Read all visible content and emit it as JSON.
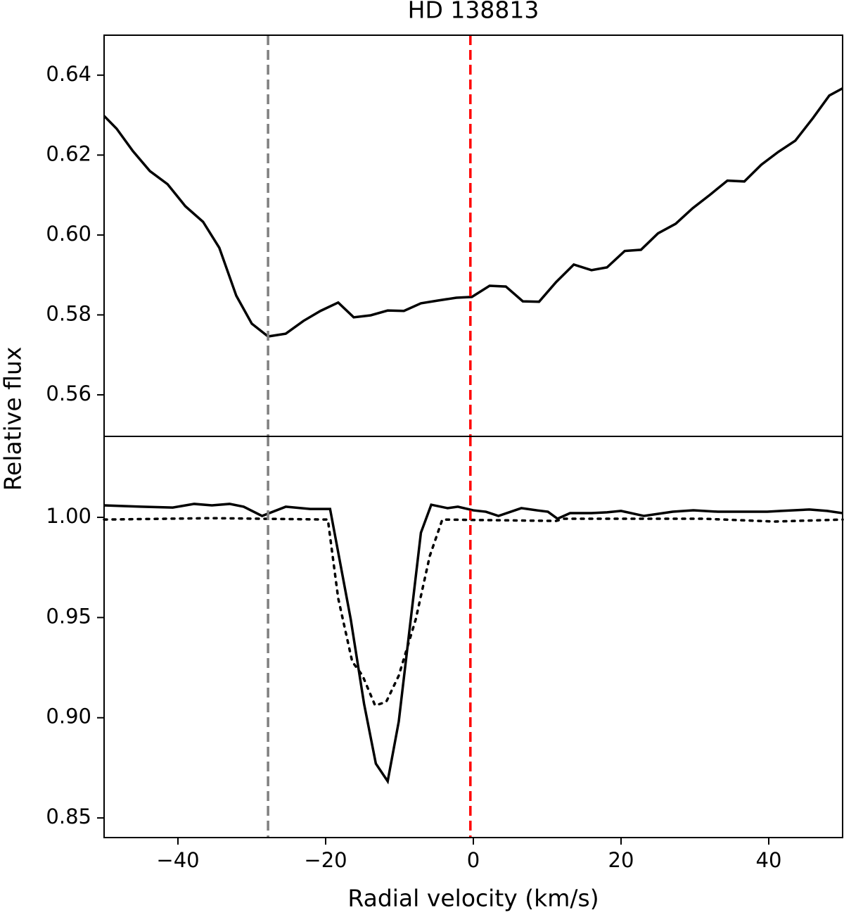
{
  "chart_data": [
    {
      "type": "line",
      "title": "HD 138813",
      "ylabel": "Relative flux",
      "xlim": [
        -50,
        50
      ],
      "ylim": [
        0.5496,
        0.65
      ],
      "yticks": [
        0.56,
        0.58,
        {
          "value": 0.6,
          "label": "0.60"
        },
        0.62,
        0.64
      ],
      "vlines": [
        {
          "x": -27.8,
          "color": "#808080",
          "style": "dashed"
        },
        {
          "x": -0.4,
          "color": "#ff0000",
          "style": "dashed"
        }
      ],
      "series": [
        {
          "color": "#000000",
          "style": "solid",
          "x": [
            -50,
            -48.3,
            -46.1,
            -43.8,
            -41.4,
            -39.0,
            -36.6,
            -34.4,
            -32.1,
            -30.0,
            -27.8,
            -25.4,
            -23.0,
            -20.7,
            -18.3,
            -16.2,
            -13.9,
            -11.6,
            -9.4,
            -7.1,
            -4.8,
            -2.3,
            -0.2,
            2.2,
            4.4,
            6.7,
            8.9,
            11.2,
            13.6,
            16.0,
            18.1,
            20.5,
            22.7,
            25.0,
            27.4,
            29.7,
            32.0,
            34.4,
            36.7,
            39.0,
            41.3,
            43.6,
            46.0,
            48.2,
            50
          ],
          "values": [
            0.6298,
            0.6266,
            0.621,
            0.616,
            0.6127,
            0.6072,
            0.6033,
            0.5968,
            0.5848,
            0.5778,
            0.5746,
            0.5753,
            0.5785,
            0.581,
            0.5831,
            0.5794,
            0.5799,
            0.5811,
            0.581,
            0.5829,
            0.5836,
            0.5843,
            0.5845,
            0.5873,
            0.5871,
            0.5834,
            0.5833,
            0.5882,
            0.5926,
            0.5912,
            0.5919,
            0.596,
            0.5963,
            0.6004,
            0.6028,
            0.6067,
            0.61,
            0.6136,
            0.6134,
            0.6176,
            0.6208,
            0.6236,
            0.6293,
            0.6349,
            0.6367
          ]
        }
      ]
    },
    {
      "type": "line",
      "xlabel": "Radial velocity (km/s)",
      "xlim": [
        -50,
        50
      ],
      "ylim": [
        0.8402,
        1.0404
      ],
      "xticks": [
        {
          "value": -40,
          "label": "−40"
        },
        {
          "value": -20,
          "label": "−20"
        },
        0,
        20,
        40
      ],
      "yticks": [
        0.85,
        {
          "value": 0.9,
          "label": "0.90"
        },
        0.95,
        {
          "value": 1,
          "label": "1.00"
        }
      ],
      "vlines": [
        {
          "x": -27.8,
          "color": "#808080",
          "style": "dashed"
        },
        {
          "x": -0.4,
          "color": "#ff0000",
          "style": "dashed"
        }
      ],
      "series": [
        {
          "color": "#000000",
          "style": "solid",
          "x": [
            -50,
            -45.0,
            -40.7,
            -37.8,
            -35.4,
            -33.0,
            -31.1,
            -28.6,
            -25.4,
            -22.1,
            -19.4,
            -16.6,
            -14.8,
            -13.2,
            -11.6,
            -10.1,
            -7.1,
            -5.7,
            -3.5,
            -2.1,
            0,
            1.7,
            3.4,
            6.5,
            8.6,
            10.1,
            11.4,
            13.1,
            16.0,
            18.1,
            20.0,
            23.1,
            27.0,
            29.8,
            33.1,
            37.0,
            39.8,
            41.7,
            45.5,
            47.9,
            50
          ],
          "values": [
            1.006,
            1.0053,
            1.0049,
            1.0067,
            1.006,
            1.0067,
            1.0053,
            1.0007,
            1.0053,
            1.0042,
            1.0042,
            0.9491,
            0.907,
            0.8771,
            0.8683,
            0.8981,
            0.9923,
            1.0063,
            1.0046,
            1.0053,
            1.0035,
            1.0028,
            1.0007,
            1.0046,
            1.0035,
            1.0028,
            0.9993,
            1.0021,
            1.0021,
            1.0025,
            1.0032,
            1.0007,
            1.0028,
            1.0035,
            1.0028,
            1.0028,
            1.0028,
            1.0032,
            1.0039,
            1.0032,
            1.0021
          ]
        },
        {
          "color": "#000000",
          "style": "dotted",
          "x": [
            -50,
            -35.4,
            -19.7,
            -18.3,
            -16.4,
            -15.0,
            -13.3,
            -11.8,
            -10.1,
            -7.8,
            -5.9,
            -4.2,
            11.2,
            12.2,
            31.2,
            40.8,
            50
          ],
          "values": [
            0.9989,
            0.9996,
            0.9989,
            0.9596,
            0.928,
            0.921,
            0.9061,
            0.9079,
            0.921,
            0.9491,
            0.9807,
            0.9989,
            0.9982,
            0.9993,
            0.9993,
            0.9979,
            0.9989
          ]
        }
      ]
    }
  ]
}
